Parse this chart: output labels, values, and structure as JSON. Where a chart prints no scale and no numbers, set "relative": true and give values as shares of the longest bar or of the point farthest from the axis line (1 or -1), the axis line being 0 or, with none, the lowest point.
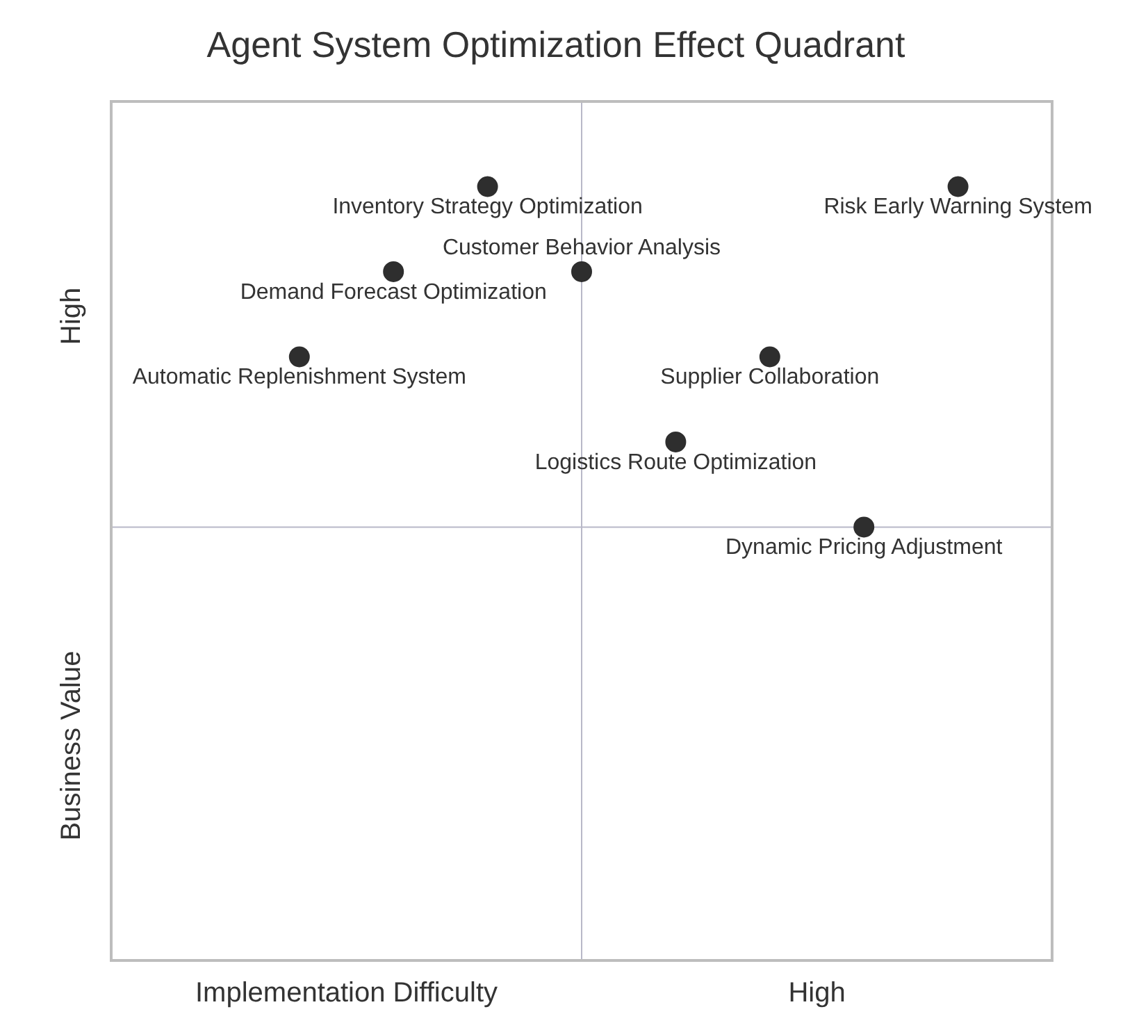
{
  "chart_data": {
    "type": "scatter",
    "title": "Agent System Optimization Effect Quadrant",
    "xlabel": "Implementation Difficulty",
    "ylabel": "Business Value",
    "annotations": [
      "High",
      "High"
    ],
    "relative": true,
    "marker": "circle",
    "categories": [
      null,
      null,
      "Automatic Replenishment System",
      "Demand Forecast Optimization",
      "Inventory Strategy Optimization",
      "Customer Behavior Analysis",
      "Logistics Route Optimization",
      "Supplier Collaboration",
      "Dynamic Pricing Adjustment",
      "Risk Early Warning System",
      null
    ],
    "series": [
      {
        "color": "#2e2e2e",
        "values": [
          null,
          null,
          0.78,
          0.89,
          1,
          0.89,
          0.67,
          0.78,
          0.56,
          1,
          null
        ]
      }
    ],
    "ref_lines": [
      {
        "axis": "x",
        "value": "Customer Behavior Analysis",
        "color": "#b8b8c8"
      },
      {
        "axis": "y",
        "value": 0.56,
        "color": "#b8b8c8"
      }
    ]
  }
}
